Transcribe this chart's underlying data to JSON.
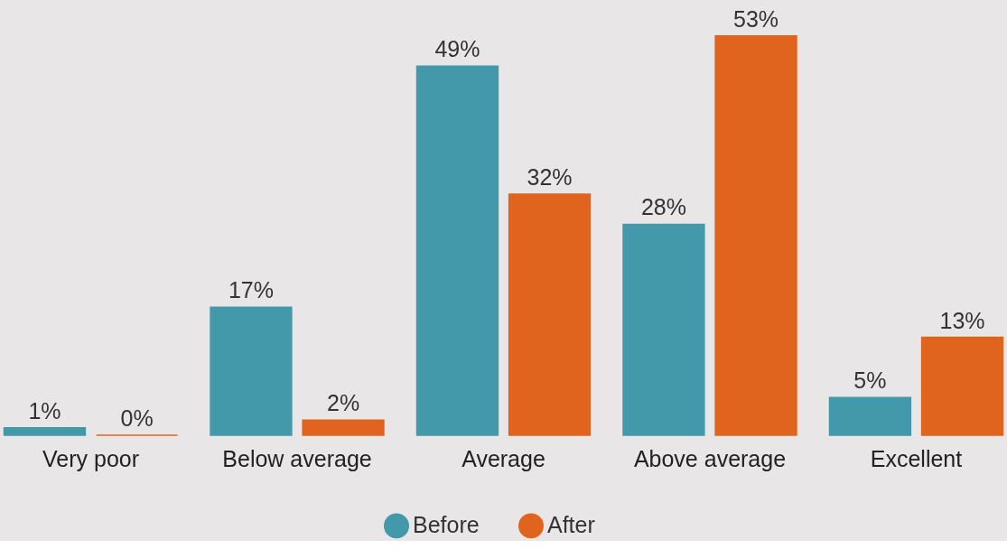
{
  "chart_data": {
    "type": "bar",
    "categories": [
      "Very poor",
      "Below average",
      "Average",
      "Above average",
      "Excellent"
    ],
    "series": [
      {
        "name": "Before",
        "color": "#4399aa",
        "values": [
          1,
          17,
          49,
          28,
          5
        ],
        "value_labels": [
          "1%",
          "17%",
          "49%",
          "28%",
          "5%"
        ]
      },
      {
        "name": "After",
        "color": "#e0641e",
        "values": [
          0,
          2,
          32,
          53,
          13
        ],
        "value_labels": [
          "0%",
          "2%",
          "32%",
          "53%",
          "13%"
        ]
      }
    ],
    "legend": "bottom"
  }
}
